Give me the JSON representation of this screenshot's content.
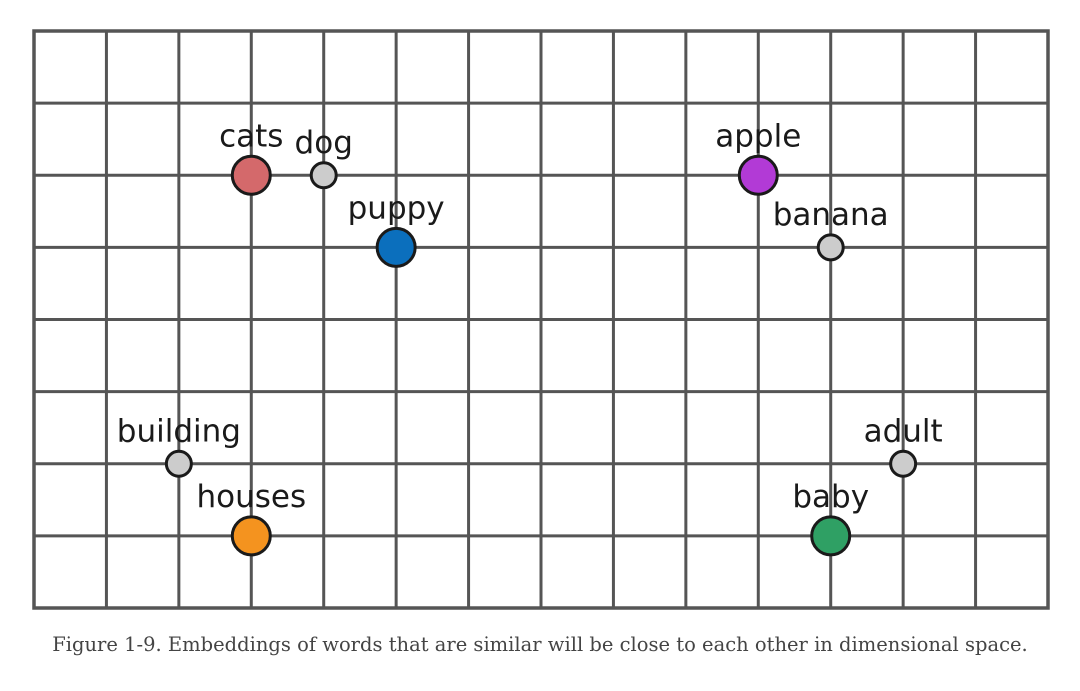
{
  "grid": {
    "columns": 14,
    "rows": 8,
    "line_color": "#555555"
  },
  "words": [
    {
      "label": "cats",
      "col": 3,
      "row": 2,
      "color": "#d4696b",
      "size": "large"
    },
    {
      "label": "dog",
      "col": 4,
      "row": 2,
      "color": "#cccccc",
      "size": "small"
    },
    {
      "label": "puppy",
      "col": 5,
      "row": 3,
      "color": "#0b6fbd",
      "size": "large"
    },
    {
      "label": "apple",
      "col": 10,
      "row": 2,
      "color": "#b23ad6",
      "size": "large"
    },
    {
      "label": "banana",
      "col": 11,
      "row": 3,
      "color": "#cccccc",
      "size": "small"
    },
    {
      "label": "building",
      "col": 2,
      "row": 6,
      "color": "#cccccc",
      "size": "small"
    },
    {
      "label": "houses",
      "col": 3,
      "row": 7,
      "color": "#f4931f",
      "size": "large"
    },
    {
      "label": "adult",
      "col": 12,
      "row": 6,
      "color": "#cccccc",
      "size": "small"
    },
    {
      "label": "baby",
      "col": 11,
      "row": 7,
      "color": "#2fa064",
      "size": "large"
    }
  ],
  "caption": "Figure 1-9. Embeddings of words that are similar will be close to each other in dimensional space."
}
